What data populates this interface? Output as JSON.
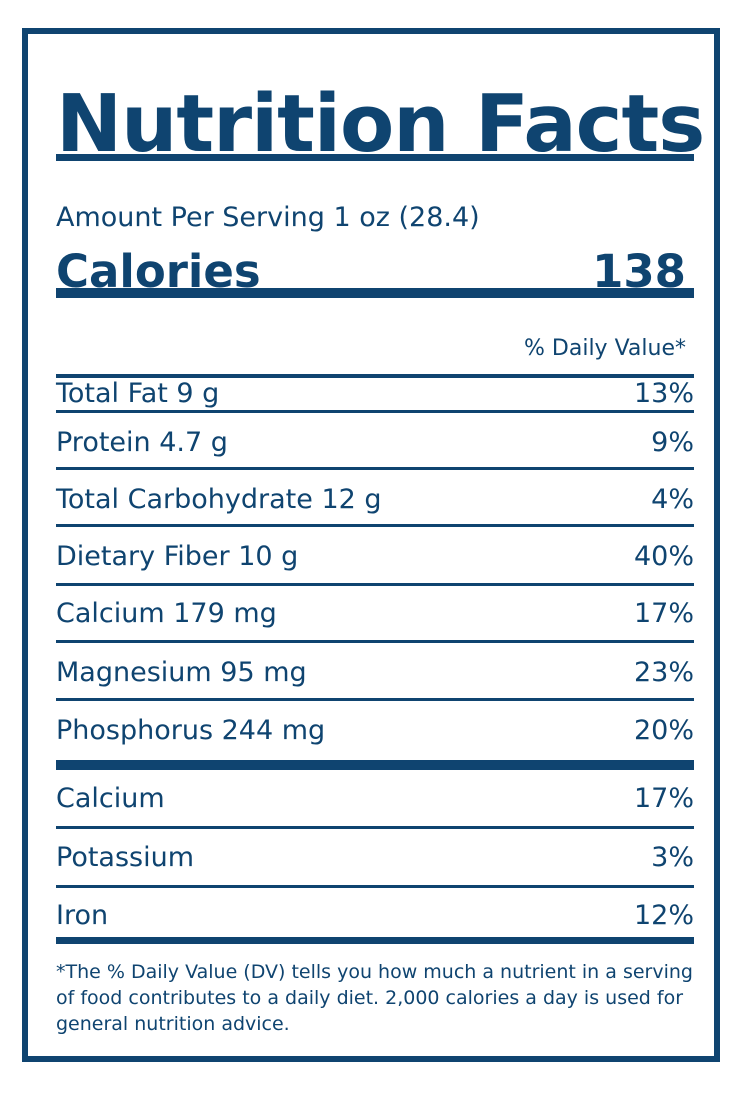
{
  "title": "Nutrition Facts",
  "serving": "Amount Per Serving 1 oz (28.4)",
  "calories": {
    "label": "Calories",
    "value": "138"
  },
  "daily_value_header": "% Daily Value*",
  "nutrients": [
    {
      "name": "Total Fat 9 g",
      "dv": "13%"
    },
    {
      "name": "Protein 4.7 g",
      "dv": "9%"
    },
    {
      "name": "Total Carbohydrate 12 g",
      "dv": "4%"
    },
    {
      "name": "Dietary Fiber 10 g",
      "dv": "40%"
    },
    {
      "name": "Calcium 179 mg",
      "dv": "17%"
    },
    {
      "name": "Magnesium 95 mg",
      "dv": "23%"
    },
    {
      "name": "Phosphorus 244 mg",
      "dv": "20%"
    }
  ],
  "minerals": [
    {
      "name": "Calcium",
      "dv": "17%"
    },
    {
      "name": "Potassium",
      "dv": "3%"
    },
    {
      "name": "Iron",
      "dv": "12%"
    }
  ],
  "footnote": "*The % Daily Value (DV) tells you how much a nutrient in a serving of food contributes to a daily diet. 2,000 calories a day is used for general nutrition advice.",
  "colors": {
    "primary": "#0f4470",
    "background": "#ffffff"
  }
}
